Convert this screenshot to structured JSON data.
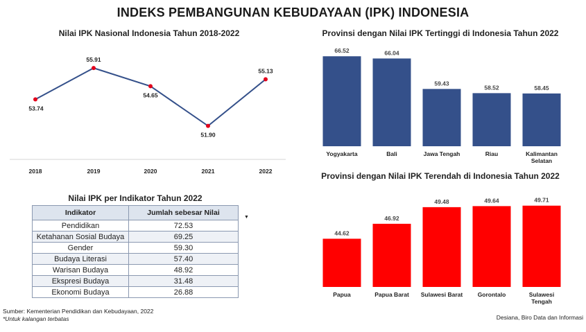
{
  "main_title": "INDEKS PEMBANGUNAN KEBUDAYAAN (IPK) INDONESIA",
  "source": "Sumber: Kementerian Pendidikan dan Kebudayaan, 2022",
  "note": "*Untuk kalangan terbatas",
  "credit": "Desiana, Biro Data dan Informasi",
  "table": {
    "title": "Nilai IPK per Indikator Tahun 2022",
    "headers": [
      "Indikator",
      "Jumlah sebesar Nilai"
    ],
    "sort_icon": "sort-descending-icon",
    "rows": [
      [
        "Pendidikan",
        "72.53"
      ],
      [
        "Ketahanan Sosial Budaya",
        "69.25"
      ],
      [
        "Gender",
        "59.30"
      ],
      [
        "Budaya Literasi",
        "57.40"
      ],
      [
        "Warisan Budaya",
        "48.92"
      ],
      [
        "Ekspresi Budaya",
        "31.48"
      ],
      [
        "Ekonomi Budaya",
        "26.88"
      ]
    ]
  },
  "chart_data": [
    {
      "type": "line",
      "title": "Nilai IPK Nasional Indonesia Tahun 2018-2022",
      "x": [
        "2018",
        "2019",
        "2020",
        "2021",
        "2022"
      ],
      "series": [
        {
          "values": [
            53.74,
            55.91,
            54.65,
            51.9,
            55.13
          ]
        }
      ],
      "data_labels": [
        "53.74",
        "55.91",
        "54.65",
        "51.90",
        "55.13"
      ],
      "ylim": [
        51.5,
        56.3
      ],
      "line_color": "#34508a",
      "marker_color": "#e3001b",
      "grid": false
    },
    {
      "type": "bar",
      "title": "Provinsi dengan Nilai IPK Tertinggi di Indonesia Tahun 2022",
      "categories": [
        "Yogyakarta",
        "Bali",
        "Jawa Tengah",
        "Riau",
        "Kalimantan Selatan"
      ],
      "category_lines": [
        [
          "Yogyakarta"
        ],
        [
          "Bali"
        ],
        [
          "Jawa Tengah"
        ],
        [
          "Riau"
        ],
        [
          "Kalimantan",
          "Selatan"
        ]
      ],
      "values": [
        66.52,
        66.04,
        59.43,
        58.52,
        58.45
      ],
      "data_labels": [
        "66.52",
        "66.04",
        "59.43",
        "58.52",
        "58.45"
      ],
      "ylim": [
        47,
        67
      ],
      "color": "#34508a",
      "grid": false
    },
    {
      "type": "bar",
      "title": "Provinsi dengan Nilai IPK Terendah di Indonesia Tahun 2022",
      "categories": [
        "Papua",
        "Papua Barat",
        "Sulawesi Barat",
        "Gorontalo",
        "Sulawesi Tengah"
      ],
      "category_lines": [
        [
          "Papua"
        ],
        [
          "Papua Barat"
        ],
        [
          "Sulawesi Barat"
        ],
        [
          "Gorontalo"
        ],
        [
          "Sulawesi",
          "Tengah"
        ]
      ],
      "values": [
        44.62,
        46.92,
        49.48,
        49.64,
        49.71
      ],
      "data_labels": [
        "44.62",
        "46.92",
        "49.48",
        "49.64",
        "49.71"
      ],
      "ylim": [
        37.2,
        50
      ],
      "color": "#ff0000",
      "grid": false
    }
  ]
}
